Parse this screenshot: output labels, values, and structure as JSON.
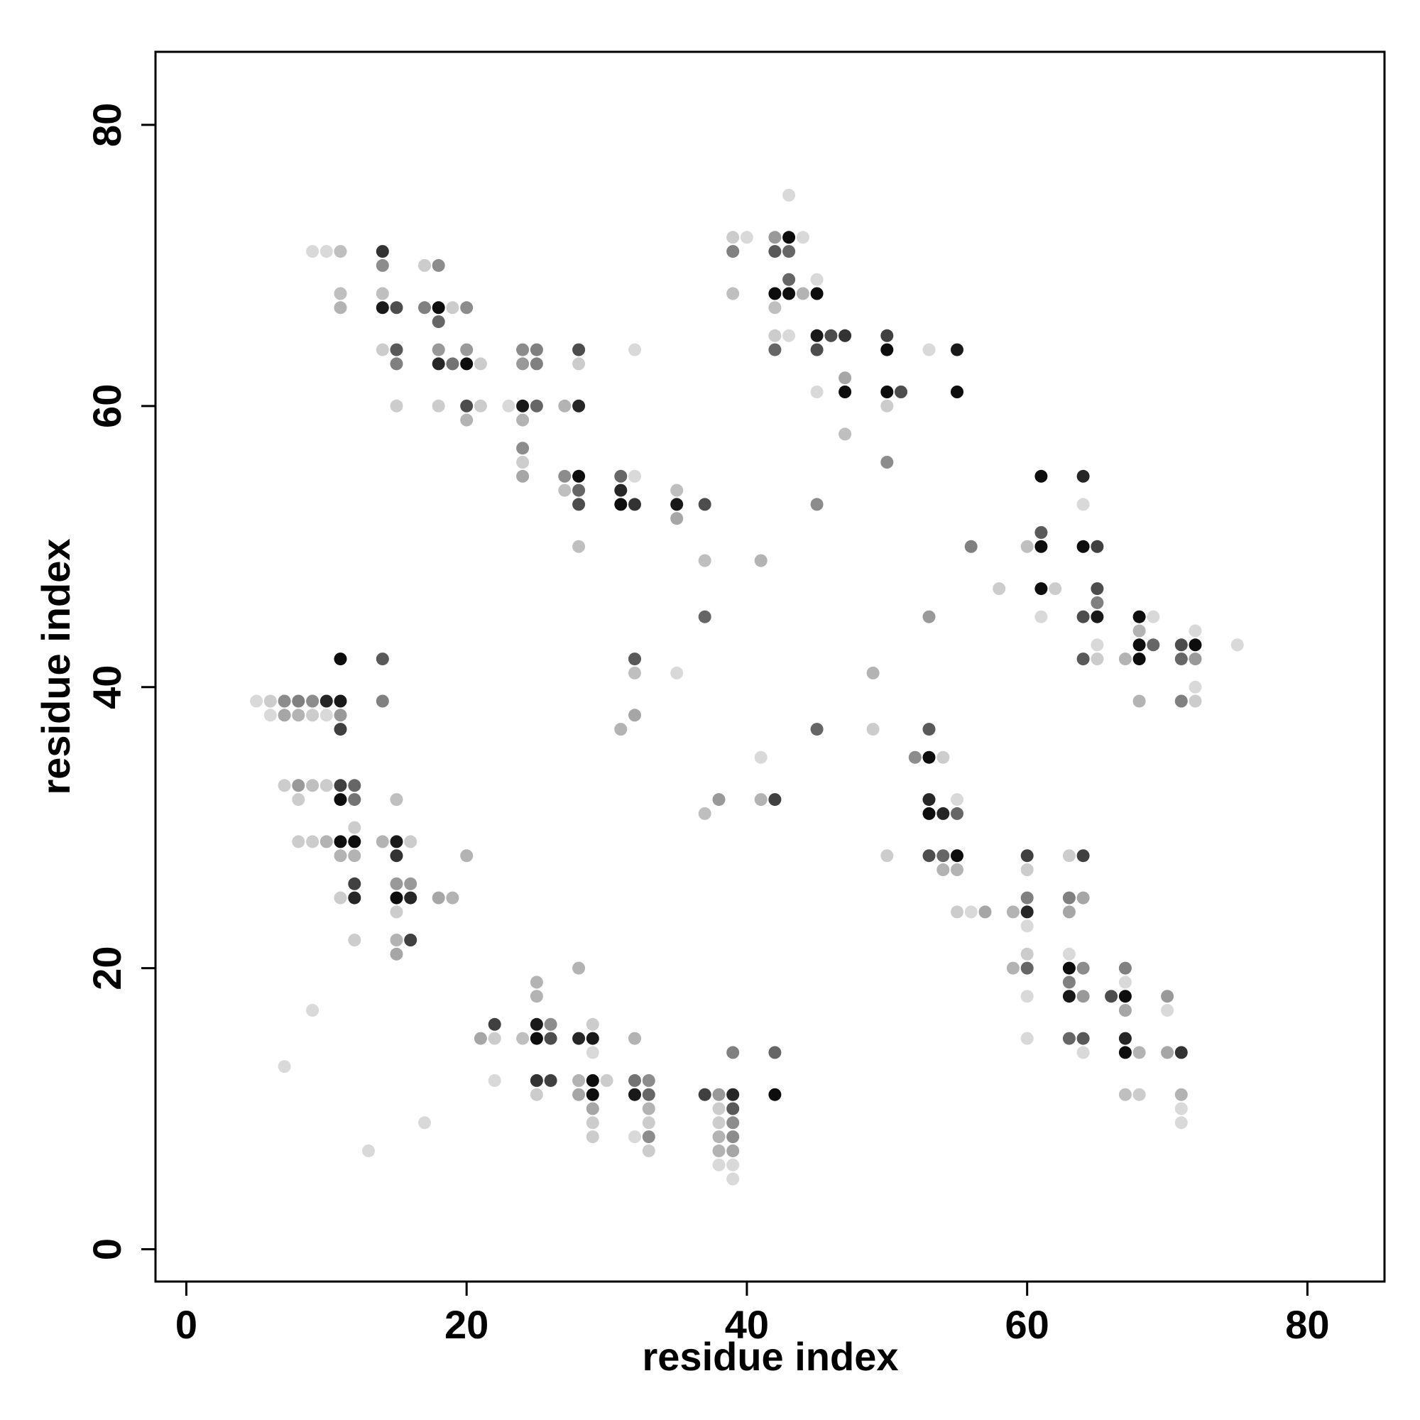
{
  "chart_data": {
    "type": "scatter",
    "title": "",
    "xlabel": "residue index",
    "ylabel": "residue index",
    "xlim": [
      -2.2,
      85.5
    ],
    "ylim": [
      -2.3,
      85.2
    ],
    "xticks": [
      0,
      20,
      40,
      60,
      80
    ],
    "yticks": [
      0,
      20,
      40,
      60,
      80
    ],
    "grid": false,
    "legend": "none",
    "marker_color": "#000000",
    "value_meaning": "darkness: 1 = black, 0 = white",
    "points": [
      [
        9,
        71,
        0.15
      ],
      [
        10,
        71,
        0.15
      ],
      [
        11,
        71,
        0.25
      ],
      [
        14,
        71,
        0.8
      ],
      [
        14,
        70,
        0.45
      ],
      [
        17,
        70,
        0.2
      ],
      [
        18,
        70,
        0.45
      ],
      [
        11,
        68,
        0.25
      ],
      [
        14,
        68,
        0.25
      ],
      [
        11,
        67,
        0.3
      ],
      [
        14,
        67,
        0.9
      ],
      [
        15,
        67,
        0.7
      ],
      [
        17,
        67,
        0.5
      ],
      [
        18,
        67,
        0.95
      ],
      [
        19,
        67,
        0.2
      ],
      [
        20,
        67,
        0.45
      ],
      [
        18,
        66,
        0.6
      ],
      [
        14,
        64,
        0.2
      ],
      [
        15,
        64,
        0.65
      ],
      [
        18,
        64,
        0.4
      ],
      [
        20,
        64,
        0.4
      ],
      [
        24,
        64,
        0.45
      ],
      [
        25,
        64,
        0.5
      ],
      [
        28,
        64,
        0.7
      ],
      [
        32,
        64,
        0.15
      ],
      [
        15,
        63,
        0.5
      ],
      [
        18,
        63,
        0.85
      ],
      [
        19,
        63,
        0.55
      ],
      [
        20,
        63,
        0.95
      ],
      [
        21,
        63,
        0.2
      ],
      [
        24,
        63,
        0.4
      ],
      [
        25,
        63,
        0.5
      ],
      [
        28,
        63,
        0.2
      ],
      [
        15,
        60,
        0.2
      ],
      [
        18,
        60,
        0.2
      ],
      [
        20,
        60,
        0.7
      ],
      [
        21,
        60,
        0.2
      ],
      [
        23,
        60,
        0.15
      ],
      [
        24,
        60,
        0.9
      ],
      [
        25,
        60,
        0.6
      ],
      [
        27,
        60,
        0.3
      ],
      [
        28,
        60,
        0.85
      ],
      [
        20,
        59,
        0.3
      ],
      [
        24,
        59,
        0.3
      ],
      [
        24,
        57,
        0.45
      ],
      [
        24,
        56,
        0.2
      ],
      [
        24,
        55,
        0.35
      ],
      [
        27,
        55,
        0.45
      ],
      [
        28,
        55,
        0.95
      ],
      [
        31,
        55,
        0.6
      ],
      [
        32,
        55,
        0.15
      ],
      [
        27,
        54,
        0.25
      ],
      [
        28,
        54,
        0.6
      ],
      [
        31,
        54,
        0.85
      ],
      [
        35,
        54,
        0.25
      ],
      [
        28,
        53,
        0.7
      ],
      [
        31,
        53,
        0.95
      ],
      [
        32,
        53,
        0.8
      ],
      [
        35,
        53,
        0.9
      ],
      [
        37,
        53,
        0.7
      ],
      [
        35,
        52,
        0.35
      ],
      [
        28,
        50,
        0.25
      ],
      [
        37,
        49,
        0.25
      ],
      [
        41,
        49,
        0.3
      ],
      [
        37,
        45,
        0.6
      ],
      [
        32,
        42,
        0.65
      ],
      [
        32,
        41,
        0.25
      ],
      [
        35,
        41,
        0.15
      ],
      [
        32,
        38,
        0.35
      ],
      [
        31,
        37,
        0.3
      ],
      [
        39,
        72,
        0.2
      ],
      [
        40,
        72,
        0.15
      ],
      [
        42,
        72,
        0.4
      ],
      [
        43,
        72,
        0.95
      ],
      [
        44,
        72,
        0.15
      ],
      [
        43,
        75,
        0.15
      ],
      [
        39,
        71,
        0.5
      ],
      [
        42,
        71,
        0.65
      ],
      [
        43,
        71,
        0.6
      ],
      [
        43,
        69,
        0.6
      ],
      [
        45,
        69,
        0.15
      ],
      [
        39,
        68,
        0.25
      ],
      [
        42,
        68,
        0.95
      ],
      [
        43,
        68,
        0.95
      ],
      [
        44,
        68,
        0.3
      ],
      [
        45,
        68,
        0.95
      ],
      [
        42,
        67,
        0.25
      ],
      [
        42,
        65,
        0.2
      ],
      [
        43,
        65,
        0.15
      ],
      [
        45,
        65,
        0.9
      ],
      [
        46,
        65,
        0.7
      ],
      [
        47,
        65,
        0.8
      ],
      [
        50,
        65,
        0.75
      ],
      [
        42,
        64,
        0.6
      ],
      [
        45,
        64,
        0.7
      ],
      [
        50,
        64,
        0.95
      ],
      [
        53,
        64,
        0.15
      ],
      [
        55,
        64,
        0.9
      ],
      [
        47,
        62,
        0.35
      ],
      [
        45,
        61,
        0.15
      ],
      [
        47,
        61,
        0.95
      ],
      [
        50,
        61,
        0.95
      ],
      [
        51,
        61,
        0.7
      ],
      [
        55,
        61,
        0.95
      ],
      [
        50,
        60,
        0.2
      ],
      [
        47,
        58,
        0.25
      ],
      [
        50,
        56,
        0.45
      ],
      [
        45,
        53,
        0.45
      ],
      [
        61,
        55,
        0.95
      ],
      [
        64,
        55,
        0.85
      ],
      [
        64,
        53,
        0.15
      ],
      [
        61,
        51,
        0.65
      ],
      [
        56,
        50,
        0.5
      ],
      [
        60,
        50,
        0.25
      ],
      [
        61,
        50,
        0.95
      ],
      [
        64,
        50,
        0.95
      ],
      [
        65,
        50,
        0.75
      ],
      [
        58,
        47,
        0.2
      ],
      [
        61,
        47,
        0.95
      ],
      [
        62,
        47,
        0.2
      ],
      [
        65,
        47,
        0.7
      ],
      [
        65,
        46,
        0.5
      ],
      [
        53,
        45,
        0.4
      ],
      [
        61,
        45,
        0.15
      ],
      [
        64,
        45,
        0.7
      ],
      [
        65,
        45,
        0.9
      ],
      [
        68,
        45,
        0.95
      ],
      [
        69,
        45,
        0.15
      ],
      [
        65,
        43,
        0.15
      ],
      [
        68,
        44,
        0.3
      ],
      [
        72,
        44,
        0.15
      ],
      [
        68,
        43,
        0.95
      ],
      [
        69,
        43,
        0.6
      ],
      [
        71,
        43,
        0.7
      ],
      [
        72,
        43,
        0.95
      ],
      [
        75,
        43,
        0.15
      ],
      [
        64,
        42,
        0.65
      ],
      [
        65,
        42,
        0.2
      ],
      [
        67,
        42,
        0.3
      ],
      [
        68,
        42,
        0.95
      ],
      [
        71,
        42,
        0.6
      ],
      [
        72,
        42,
        0.4
      ],
      [
        49,
        41,
        0.3
      ],
      [
        72,
        40,
        0.15
      ],
      [
        68,
        39,
        0.3
      ],
      [
        71,
        39,
        0.5
      ],
      [
        72,
        39,
        0.2
      ],
      [
        11,
        42,
        0.95
      ],
      [
        14,
        42,
        0.65
      ],
      [
        5,
        39,
        0.15
      ],
      [
        6,
        39,
        0.2
      ],
      [
        7,
        39,
        0.45
      ],
      [
        8,
        39,
        0.5
      ],
      [
        9,
        39,
        0.45
      ],
      [
        10,
        39,
        0.85
      ],
      [
        11,
        39,
        0.9
      ],
      [
        14,
        39,
        0.5
      ],
      [
        6,
        38,
        0.15
      ],
      [
        7,
        38,
        0.35
      ],
      [
        8,
        38,
        0.3
      ],
      [
        9,
        38,
        0.2
      ],
      [
        10,
        38,
        0.15
      ],
      [
        11,
        38,
        0.4
      ],
      [
        11,
        37,
        0.75
      ],
      [
        7,
        33,
        0.2
      ],
      [
        8,
        33,
        0.4
      ],
      [
        9,
        33,
        0.25
      ],
      [
        10,
        33,
        0.2
      ],
      [
        11,
        33,
        0.75
      ],
      [
        12,
        33,
        0.6
      ],
      [
        8,
        32,
        0.2
      ],
      [
        11,
        32,
        0.95
      ],
      [
        12,
        32,
        0.55
      ],
      [
        15,
        32,
        0.25
      ],
      [
        12,
        30,
        0.2
      ],
      [
        8,
        29,
        0.2
      ],
      [
        9,
        29,
        0.2
      ],
      [
        10,
        29,
        0.3
      ],
      [
        11,
        29,
        0.95
      ],
      [
        12,
        29,
        0.95
      ],
      [
        14,
        29,
        0.3
      ],
      [
        15,
        29,
        0.9
      ],
      [
        16,
        29,
        0.2
      ],
      [
        11,
        28,
        0.3
      ],
      [
        12,
        28,
        0.3
      ],
      [
        15,
        28,
        0.8
      ],
      [
        20,
        28,
        0.3
      ],
      [
        12,
        26,
        0.75
      ],
      [
        15,
        26,
        0.4
      ],
      [
        16,
        26,
        0.4
      ],
      [
        11,
        25,
        0.2
      ],
      [
        12,
        25,
        0.85
      ],
      [
        15,
        25,
        0.95
      ],
      [
        16,
        25,
        0.85
      ],
      [
        18,
        25,
        0.35
      ],
      [
        19,
        25,
        0.3
      ],
      [
        15,
        24,
        0.2
      ],
      [
        12,
        22,
        0.2
      ],
      [
        15,
        22,
        0.3
      ],
      [
        16,
        22,
        0.75
      ],
      [
        15,
        21,
        0.35
      ],
      [
        9,
        17,
        0.15
      ],
      [
        7,
        13,
        0.15
      ],
      [
        17,
        9,
        0.15
      ],
      [
        13,
        7,
        0.15
      ],
      [
        45,
        37,
        0.6
      ],
      [
        49,
        37,
        0.2
      ],
      [
        53,
        37,
        0.65
      ],
      [
        41,
        35,
        0.15
      ],
      [
        52,
        35,
        0.45
      ],
      [
        53,
        35,
        0.95
      ],
      [
        54,
        35,
        0.2
      ],
      [
        37,
        31,
        0.25
      ],
      [
        38,
        32,
        0.4
      ],
      [
        41,
        32,
        0.3
      ],
      [
        42,
        32,
        0.75
      ],
      [
        53,
        32,
        0.85
      ],
      [
        55,
        32,
        0.15
      ],
      [
        53,
        31,
        0.95
      ],
      [
        54,
        31,
        0.85
      ],
      [
        55,
        31,
        0.6
      ],
      [
        50,
        28,
        0.2
      ],
      [
        53,
        28,
        0.7
      ],
      [
        54,
        28,
        0.6
      ],
      [
        55,
        28,
        0.95
      ],
      [
        54,
        27,
        0.3
      ],
      [
        55,
        27,
        0.3
      ],
      [
        55,
        24,
        0.2
      ],
      [
        56,
        24,
        0.15
      ],
      [
        57,
        24,
        0.35
      ],
      [
        59,
        24,
        0.3
      ],
      [
        60,
        24,
        0.85
      ],
      [
        60,
        23,
        0.15
      ],
      [
        60,
        28,
        0.75
      ],
      [
        63,
        28,
        0.2
      ],
      [
        64,
        28,
        0.75
      ],
      [
        60,
        27,
        0.2
      ],
      [
        60,
        25,
        0.5
      ],
      [
        63,
        25,
        0.5
      ],
      [
        64,
        25,
        0.35
      ],
      [
        63,
        24,
        0.35
      ],
      [
        60,
        21,
        0.2
      ],
      [
        63,
        21,
        0.15
      ],
      [
        59,
        20,
        0.3
      ],
      [
        60,
        20,
        0.6
      ],
      [
        63,
        20,
        0.95
      ],
      [
        64,
        20,
        0.45
      ],
      [
        67,
        20,
        0.5
      ],
      [
        63,
        19,
        0.5
      ],
      [
        67,
        19,
        0.15
      ],
      [
        60,
        18,
        0.15
      ],
      [
        63,
        18,
        0.9
      ],
      [
        64,
        18,
        0.4
      ],
      [
        66,
        18,
        0.7
      ],
      [
        67,
        18,
        0.95
      ],
      [
        70,
        18,
        0.4
      ],
      [
        67,
        17,
        0.35
      ],
      [
        70,
        17,
        0.15
      ],
      [
        60,
        15,
        0.15
      ],
      [
        63,
        15,
        0.6
      ],
      [
        64,
        15,
        0.65
      ],
      [
        67,
        15,
        0.85
      ],
      [
        67,
        14,
        0.95
      ],
      [
        68,
        14,
        0.3
      ],
      [
        64,
        14,
        0.15
      ],
      [
        70,
        14,
        0.35
      ],
      [
        71,
        14,
        0.8
      ],
      [
        67,
        11,
        0.25
      ],
      [
        68,
        11,
        0.2
      ],
      [
        71,
        11,
        0.3
      ],
      [
        71,
        10,
        0.15
      ],
      [
        71,
        9,
        0.15
      ],
      [
        22,
        16,
        0.75
      ],
      [
        25,
        16,
        0.9
      ],
      [
        26,
        16,
        0.45
      ],
      [
        21,
        15,
        0.35
      ],
      [
        22,
        15,
        0.2
      ],
      [
        24,
        15,
        0.25
      ],
      [
        25,
        15,
        0.95
      ],
      [
        26,
        15,
        0.7
      ],
      [
        28,
        15,
        0.85
      ],
      [
        29,
        15,
        0.9
      ],
      [
        32,
        15,
        0.3
      ],
      [
        25,
        19,
        0.3
      ],
      [
        25,
        18,
        0.3
      ],
      [
        28,
        20,
        0.3
      ],
      [
        29,
        16,
        0.2
      ],
      [
        29,
        14,
        0.15
      ],
      [
        22,
        12,
        0.15
      ],
      [
        25,
        12,
        0.8
      ],
      [
        26,
        12,
        0.75
      ],
      [
        28,
        12,
        0.3
      ],
      [
        29,
        12,
        0.95
      ],
      [
        30,
        12,
        0.2
      ],
      [
        32,
        12,
        0.55
      ],
      [
        33,
        12,
        0.45
      ],
      [
        25,
        11,
        0.2
      ],
      [
        28,
        11,
        0.35
      ],
      [
        29,
        11,
        0.95
      ],
      [
        32,
        11,
        0.9
      ],
      [
        33,
        11,
        0.6
      ],
      [
        29,
        10,
        0.35
      ],
      [
        33,
        10,
        0.3
      ],
      [
        29,
        9,
        0.2
      ],
      [
        33,
        9,
        0.2
      ],
      [
        29,
        8,
        0.2
      ],
      [
        32,
        8,
        0.15
      ],
      [
        33,
        8,
        0.45
      ],
      [
        33,
        7,
        0.2
      ],
      [
        37,
        11,
        0.75
      ],
      [
        38,
        11,
        0.4
      ],
      [
        39,
        11,
        0.85
      ],
      [
        42,
        11,
        0.95
      ],
      [
        38,
        10,
        0.2
      ],
      [
        39,
        10,
        0.65
      ],
      [
        39,
        14,
        0.5
      ],
      [
        42,
        14,
        0.6
      ],
      [
        38,
        9,
        0.2
      ],
      [
        39,
        9,
        0.45
      ],
      [
        38,
        8,
        0.3
      ],
      [
        39,
        8,
        0.45
      ],
      [
        38,
        7,
        0.3
      ],
      [
        39,
        7,
        0.35
      ],
      [
        38,
        6,
        0.15
      ],
      [
        39,
        6,
        0.15
      ],
      [
        39,
        5,
        0.15
      ]
    ]
  }
}
